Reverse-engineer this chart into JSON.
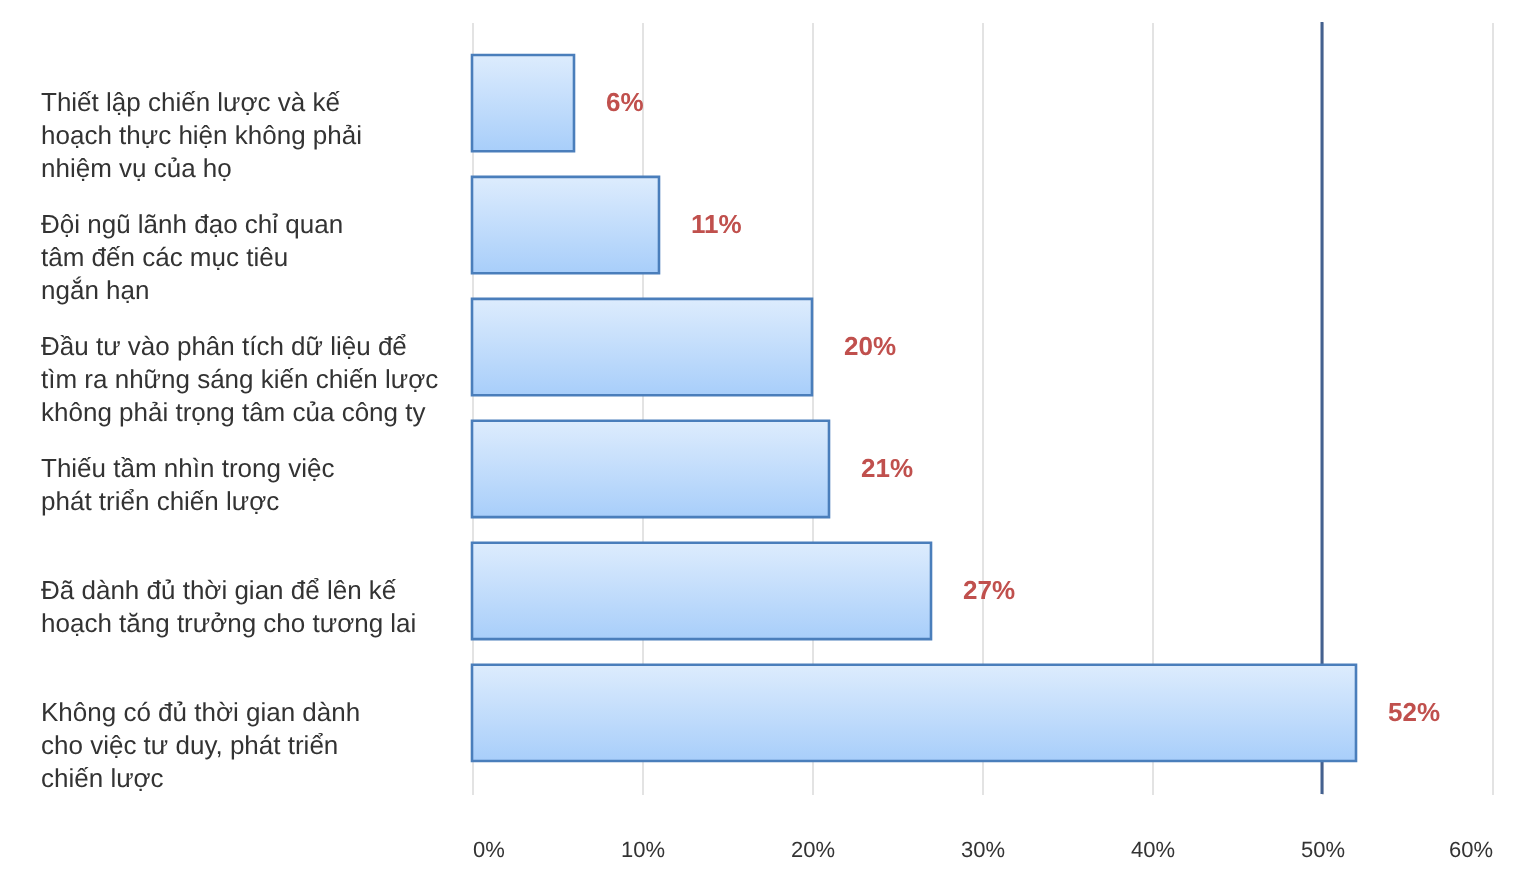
{
  "chart_data": {
    "type": "bar",
    "orientation": "horizontal",
    "categories": [
      "Thiết lập chiến lược và kế\nhoạch thực hiện không phải\nnhiệm vụ của họ",
      "Đội ngũ lãnh đạo chỉ quan\ntâm đến các mục tiêu\nngắn hạn",
      "Đầu tư vào phân tích dữ liệu để\ntìm ra những sáng kiến chiến lược\nkhông phải trọng tâm của công ty",
      "Thiếu tầm nhìn trong việc\nphát triển chiến lược",
      "Đã dành đủ thời gian để lên kế\nhoạch tăng trưởng cho tương lai",
      "Không có đủ thời gian dành\ncho việc tư duy, phát triển\nchiến lược"
    ],
    "values": [
      6,
      11,
      20,
      21,
      27,
      52
    ],
    "value_labels": [
      "6%",
      "11%",
      "20%",
      "21%",
      "27%",
      "52%"
    ],
    "color": "#4a7ebb",
    "xlim": [
      0,
      60
    ],
    "xticks": [
      {
        "value": 0,
        "label": "0%"
      },
      {
        "value": 10,
        "label": "10%"
      },
      {
        "value": 20,
        "label": "20%"
      },
      {
        "value": 30,
        "label": "30%"
      },
      {
        "value": 40,
        "label": "40%"
      },
      {
        "value": 50,
        "label": "50%"
      },
      {
        "value": 60,
        "label": "60%"
      }
    ],
    "grid": "x",
    "ref_lines": [
      {
        "axis": "x",
        "value": 50,
        "color": "#44618f"
      }
    ]
  }
}
